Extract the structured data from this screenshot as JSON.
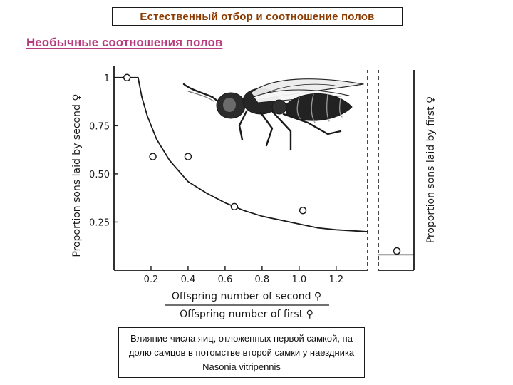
{
  "header": {
    "title": "Естественный отбор и соотношение полов",
    "subtitle": "Необычные соотношения полов"
  },
  "caption": "Влияние числа яиц, отложенных первой самкой, на долю самцов в потомстве второй самки у наездника Nasonia vitripennis",
  "illustration": {
    "icon": "wasp-icon"
  },
  "colors": {
    "title_text": "#8b3a00",
    "subtitle_text": "#b83c7d",
    "ink": "#1a1a1a"
  },
  "chart_data": {
    "type": "scatter",
    "title": "",
    "xlabel_numerator": "Offspring number of second ♀",
    "xlabel_denominator": "Offspring number of first ♀",
    "ylabel_left": "Proportion sons laid by second ♀",
    "ylabel_right": "Proportion sons laid by first ♀",
    "xlim": [
      0,
      1.37
    ],
    "ylim": [
      0,
      1.04
    ],
    "x_ticks": [
      0.2,
      0.4,
      0.6,
      0.8,
      1.0,
      1.2
    ],
    "x_tick_labels": [
      "0.2",
      "0.4",
      "0.6",
      "0.8",
      "1.0",
      "1.2"
    ],
    "y_ticks": [
      0.25,
      0.5,
      0.75,
      1
    ],
    "y_tick_labels": [
      "0.25",
      "0.50",
      "0.75",
      "1"
    ],
    "grid": false,
    "series": [
      {
        "values": [
          {
            "x": 0.07,
            "y": 1.0
          },
          {
            "x": 0.21,
            "y": 0.59
          },
          {
            "x": 0.4,
            "y": 0.59
          },
          {
            "x": 0.65,
            "y": 0.33
          },
          {
            "x": 1.02,
            "y": 0.31
          }
        ]
      }
    ],
    "fitted_curve": [
      {
        "x": 0.0,
        "y": 1.0
      },
      {
        "x": 0.13,
        "y": 1.0
      },
      {
        "x": 0.15,
        "y": 0.9
      },
      {
        "x": 0.18,
        "y": 0.8
      },
      {
        "x": 0.23,
        "y": 0.68
      },
      {
        "x": 0.3,
        "y": 0.57
      },
      {
        "x": 0.4,
        "y": 0.46
      },
      {
        "x": 0.5,
        "y": 0.4
      },
      {
        "x": 0.6,
        "y": 0.35
      },
      {
        "x": 0.7,
        "y": 0.31
      },
      {
        "x": 0.8,
        "y": 0.28
      },
      {
        "x": 0.9,
        "y": 0.26
      },
      {
        "x": 1.0,
        "y": 0.24
      },
      {
        "x": 1.1,
        "y": 0.22
      },
      {
        "x": 1.2,
        "y": 0.21
      },
      {
        "x": 1.37,
        "y": 0.2
      }
    ],
    "single_female_point": {
      "y": 0.1
    },
    "single_female_line": {
      "y": 0.08
    }
  }
}
